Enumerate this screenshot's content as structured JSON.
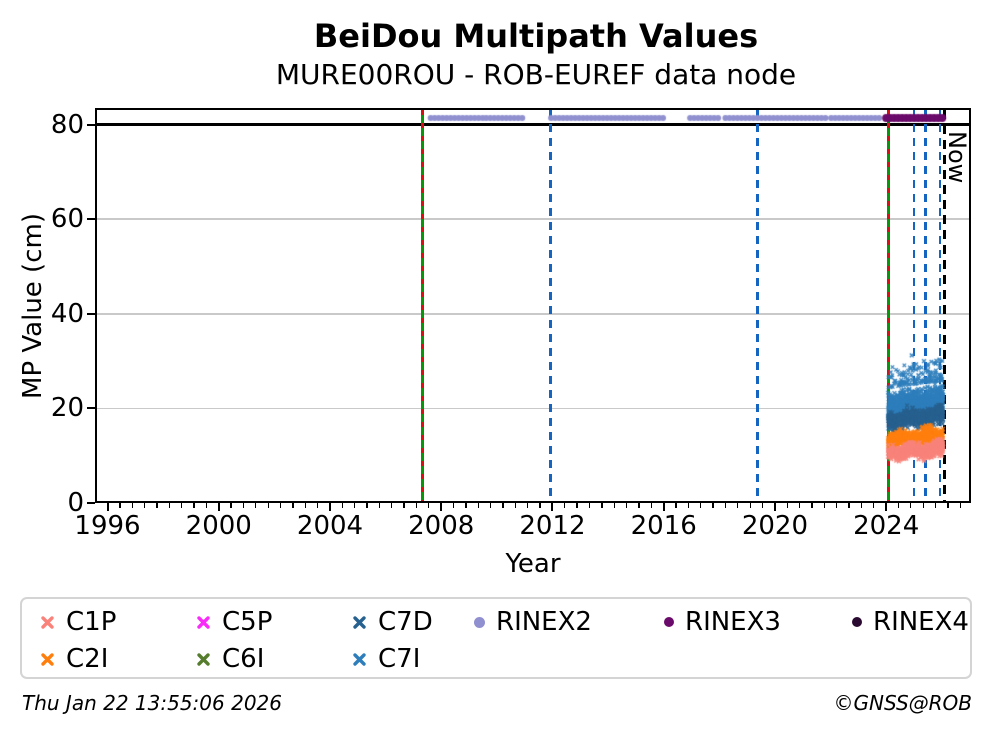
{
  "header": {
    "title": "BeiDou Multipath Values",
    "subtitle": "MURE00ROU - ROB-EUREF data node"
  },
  "footer": {
    "timestamp": "Thu Jan 22 13:55:06 2026",
    "credit": "©GNSS@ROB"
  },
  "colors": {
    "C1P": "#f9837b",
    "C2I": "#ff7f0e",
    "C5P": "#f92bf9",
    "C6I": "#567d2e",
    "C7D": "#27618f",
    "C7I": "#2e7ebc",
    "RINEX2": "#9090d0",
    "RINEX3": "#6a0a6a",
    "RINEX4": "#2a0a30",
    "event_green": "#0a960a",
    "event_red": "#d51111",
    "event_blue": "#1565c0",
    "now_black": "#000000",
    "grid": "#c9c9c9",
    "threshold": "#000000"
  },
  "legend": {
    "items": [
      {
        "label": "C1P",
        "marker": "x",
        "col": 0,
        "row": 0
      },
      {
        "label": "C2I",
        "marker": "x",
        "col": 0,
        "row": 1
      },
      {
        "label": "C5P",
        "marker": "x",
        "col": 1,
        "row": 0
      },
      {
        "label": "C6I",
        "marker": "x",
        "col": 1,
        "row": 1
      },
      {
        "label": "C7D",
        "marker": "x",
        "col": 2,
        "row": 0
      },
      {
        "label": "C7I",
        "marker": "x",
        "col": 2,
        "row": 1
      },
      {
        "label": "RINEX2",
        "marker": "circle",
        "col": 3,
        "row": 0
      },
      {
        "label": "RINEX3",
        "marker": "circle",
        "col": 4,
        "row": 0
      },
      {
        "label": "RINEX4",
        "marker": "circle",
        "col": 5,
        "row": 0
      }
    ],
    "column_offsets": [
      18,
      174,
      330,
      452,
      642,
      830
    ],
    "row_offsets": [
      8,
      45
    ]
  },
  "chart_data": {
    "type": "scatter",
    "title": "BeiDou Multipath Values",
    "subtitle": "MURE00ROU - ROB-EUREF data node",
    "xlabel": "Year",
    "ylabel": "MP Value (cm)",
    "xlim": [
      1995.55,
      2027.05
    ],
    "ylim": [
      0,
      83.5
    ],
    "xticks": [
      1996,
      2000,
      2004,
      2008,
      2012,
      2016,
      2020,
      2024
    ],
    "x_minor_tick_step": 0.4444,
    "yticks": [
      0,
      20,
      40,
      60,
      80
    ],
    "grid": "horizontal-only",
    "legend_position": "bottom",
    "threshold_line": {
      "y": 80
    },
    "rinex_track_y": 81.4,
    "event_lines": [
      {
        "year": 2007.3,
        "style": "green-red-dashed"
      },
      {
        "year": 2011.93,
        "style": "blue-dashed"
      },
      {
        "year": 2019.38,
        "style": "blue-dashed"
      },
      {
        "year": 2024.07,
        "style": "green-red-dashed"
      },
      {
        "year": 2025.0,
        "style": "blue-dashed"
      },
      {
        "year": 2025.42,
        "style": "blue-dashed"
      },
      {
        "year": 2025.93,
        "style": "blue-dashed"
      }
    ],
    "now_line": {
      "year": 2026.1,
      "label": "Now",
      "style": "black-dashed"
    },
    "series": [
      {
        "name": "C7I",
        "marker": "x",
        "cluster": {
          "x": [
            2024.07,
            2026.05
          ],
          "y": [
            15.8,
            25.2
          ],
          "trend": 1.6,
          "n": 1050,
          "upper_tail": 4.5
        }
      },
      {
        "name": "C7D",
        "marker": "x",
        "cluster": {
          "x": [
            2024.07,
            2026.05
          ],
          "y": [
            15.2,
            20.6
          ],
          "trend": 1.2,
          "n": 520
        }
      },
      {
        "name": "C2I",
        "marker": "x",
        "cluster": {
          "x": [
            2024.07,
            2026.05
          ],
          "y": [
            11.4,
            16.2
          ],
          "trend": 1.1,
          "n": 620
        }
      },
      {
        "name": "C1P",
        "marker": "x",
        "cluster": {
          "x": [
            2024.07,
            2026.05
          ],
          "y": [
            8.9,
            13.2
          ],
          "trend": 0.9,
          "n": 620
        }
      },
      {
        "name": "C5P",
        "marker": "x",
        "cluster": null
      },
      {
        "name": "C6I",
        "marker": "x",
        "cluster": null
      },
      {
        "name": "RINEX2",
        "marker": "circle",
        "track_y": 81.4,
        "segments": [
          [
            2007.62,
            2009.5
          ],
          [
            2009.62,
            2011.05
          ],
          [
            2011.95,
            2016.1
          ],
          [
            2016.95,
            2018.08
          ],
          [
            2018.22,
            2021.9
          ],
          [
            2022.02,
            2023.75
          ]
        ]
      },
      {
        "name": "RINEX3",
        "marker": "circle",
        "track_y": 81.4,
        "segments": [
          [
            2024.0,
            2026.1
          ]
        ]
      },
      {
        "name": "RINEX4",
        "marker": "circle",
        "track_y": null,
        "segments": []
      }
    ],
    "outliers": {
      "series": "C7I",
      "points": [
        [
          2024.16,
          26.6
        ],
        [
          2024.31,
          25.8
        ],
        [
          2024.92,
          31.2
        ],
        [
          2024.99,
          29.3
        ],
        [
          2025.07,
          28.2
        ],
        [
          2025.12,
          26.1
        ],
        [
          2025.16,
          27.0
        ],
        [
          2025.36,
          30.0
        ],
        [
          2025.44,
          26.2
        ],
        [
          2025.5,
          27.7
        ],
        [
          2025.63,
          26.4
        ],
        [
          2025.78,
          29.5
        ],
        [
          2025.9,
          27.1
        ],
        [
          2025.99,
          25.9
        ]
      ]
    }
  }
}
